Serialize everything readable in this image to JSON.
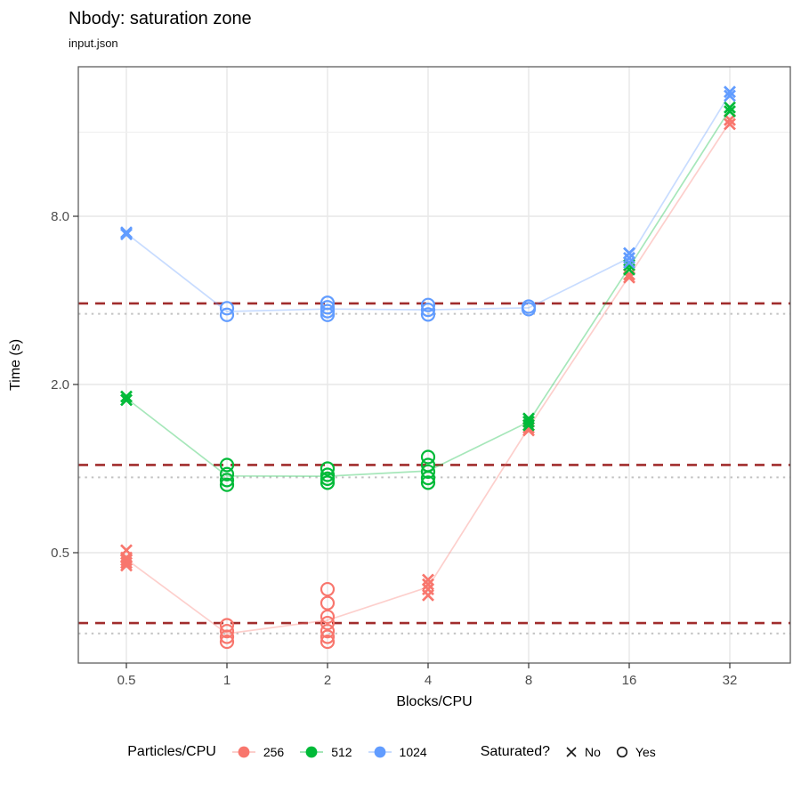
{
  "header": {
    "title": "Nbody: saturation zone",
    "subtitle": "input.json"
  },
  "chart_data": {
    "type": "scatter",
    "title": "Nbody: saturation zone",
    "subtitle": "input.json",
    "x_axis": {
      "label": "Blocks/CPU",
      "scale": "log2",
      "ticks": [
        0.5,
        1,
        2,
        4,
        8,
        16,
        32
      ],
      "tick_labels": [
        "0.5",
        "1",
        "2",
        "4",
        "8",
        "16",
        "32"
      ],
      "range": [
        0.36,
        48
      ]
    },
    "y_axis": {
      "label": "Time (s)",
      "scale": "log",
      "ticks": [
        8,
        2,
        0.5
      ],
      "tick_labels": [
        "8.0",
        "2.0",
        "0.5"
      ],
      "minor_ticks": [
        16
      ],
      "range": [
        0.2,
        27.5
      ]
    },
    "grid": {
      "major_color": "#E7E7E7",
      "minor_color": "#EFEFEF"
    },
    "reference_lines": {
      "dashed": {
        "style": "dashed",
        "color": "#A02C2C",
        "values": [
          3.9,
          1.03,
          0.28
        ]
      },
      "dotted": {
        "style": "dotted",
        "color": "#C2C2C2",
        "values": [
          3.58,
          0.93,
          0.257
        ]
      }
    },
    "shape_meaning": {
      "X": "No (not saturated)",
      "O": "Yes (saturated)"
    },
    "series": [
      {
        "name": "256",
        "color": "#F8766D",
        "points": [
          {
            "x": 0.5,
            "shape": "X",
            "values": [
              0.51,
              0.48,
              0.47,
              0.46,
              0.45
            ]
          },
          {
            "x": 1,
            "shape": "O",
            "values": [
              0.275,
              0.262,
              0.25,
              0.24
            ]
          },
          {
            "x": 2,
            "shape": "O",
            "values": [
              0.37,
              0.33,
              0.295,
              0.28,
              0.262,
              0.25,
              0.24
            ]
          },
          {
            "x": 4,
            "shape": "X",
            "values": [
              0.4,
              0.385,
              0.37,
              0.352
            ]
          },
          {
            "x": 8,
            "shape": "X",
            "values": [
              1.43,
              1.4,
              1.37
            ]
          },
          {
            "x": 16,
            "shape": "X",
            "values": [
              4.95,
              4.83
            ]
          },
          {
            "x": 32,
            "shape": "X",
            "values": [
              17.7,
              17.1
            ]
          }
        ]
      },
      {
        "name": "512",
        "color": "#00BA38",
        "points": [
          {
            "x": 0.5,
            "shape": "X",
            "values": [
              1.81,
              1.76
            ]
          },
          {
            "x": 1,
            "shape": "O",
            "values": [
              1.03,
              0.955,
              0.91,
              0.875
            ]
          },
          {
            "x": 2,
            "shape": "O",
            "values": [
              1.0,
              0.95,
              0.92,
              0.89
            ]
          },
          {
            "x": 4,
            "shape": "O",
            "values": [
              1.1,
              1.03,
              0.975,
              0.925,
              0.89
            ]
          },
          {
            "x": 8,
            "shape": "X",
            "values": [
              1.51,
              1.47,
              1.43
            ]
          },
          {
            "x": 16,
            "shape": "X",
            "values": [
              5.35,
              5.16
            ]
          },
          {
            "x": 32,
            "shape": "X",
            "values": [
              19.6,
              19.0
            ]
          }
        ]
      },
      {
        "name": "1024",
        "color": "#619CFF",
        "points": [
          {
            "x": 0.5,
            "shape": "X",
            "values": [
              7.0,
              6.9
            ]
          },
          {
            "x": 1,
            "shape": "O",
            "values": [
              3.75,
              3.55
            ]
          },
          {
            "x": 2,
            "shape": "O",
            "values": [
              3.92,
              3.78,
              3.66,
              3.55
            ]
          },
          {
            "x": 4,
            "shape": "O",
            "values": [
              3.85,
              3.7,
              3.56
            ]
          },
          {
            "x": 8,
            "shape": "O",
            "values": [
              3.8,
              3.72
            ]
          },
          {
            "x": 16,
            "shape": "X",
            "values": [
              5.9,
              5.67,
              5.46
            ]
          },
          {
            "x": 32,
            "shape": "X",
            "values": [
              22.3,
              21.6
            ]
          }
        ]
      }
    ]
  },
  "legend": {
    "color": {
      "title": "Particles/CPU",
      "items": [
        {
          "label": "256",
          "color": "#F8766D"
        },
        {
          "label": "512",
          "color": "#00BA38"
        },
        {
          "label": "1024",
          "color": "#619CFF"
        }
      ]
    },
    "shape": {
      "title": "Saturated?",
      "items": [
        {
          "label": "No",
          "glyph": "X"
        },
        {
          "label": "Yes",
          "glyph": "O"
        }
      ]
    }
  }
}
